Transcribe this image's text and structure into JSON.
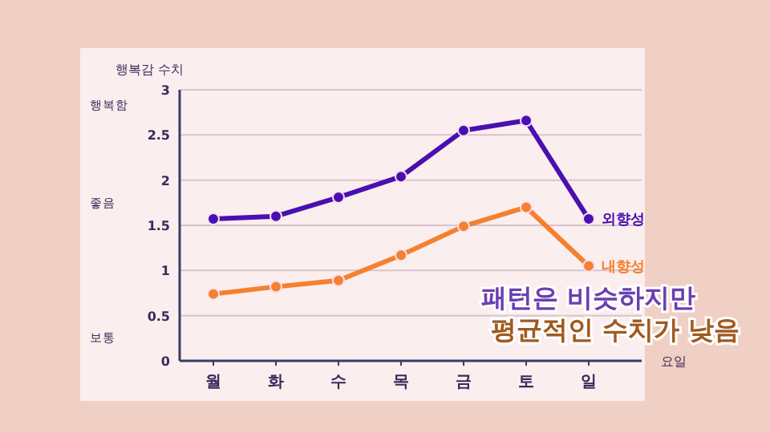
{
  "chart_data": {
    "type": "line",
    "ylabel": "행복감 수치",
    "xlabel": "요일",
    "categories": [
      "월",
      "화",
      "수",
      "목",
      "금",
      "토",
      "일"
    ],
    "series": [
      {
        "name": "외향성",
        "color": "#4a0fb0",
        "values": [
          1.57,
          1.6,
          1.81,
          2.04,
          2.55,
          2.66,
          1.57
        ]
      },
      {
        "name": "내향성",
        "color": "#f5802e",
        "values": [
          0.74,
          0.82,
          0.89,
          1.17,
          1.49,
          1.7,
          1.05
        ]
      }
    ],
    "ylim": [
      0,
      3
    ],
    "yticks": [
      0,
      0.5,
      1,
      1.5,
      2,
      2.5,
      3
    ],
    "grid": "y",
    "marker": "circle",
    "annotations": [
      "행복함",
      "좋음",
      "보통",
      "패턴은 비슷하지만\n평균적인 수치가 낮음"
    ]
  }
}
